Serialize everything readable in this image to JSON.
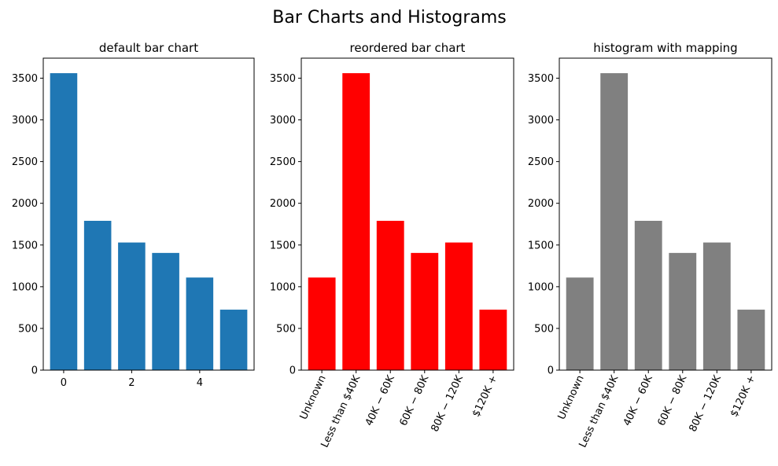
{
  "figure": {
    "title": "Bar Charts and Histograms"
  },
  "chart_data": [
    {
      "type": "bar",
      "title": "default bar chart",
      "xlabel": "",
      "ylabel": "",
      "x": [
        0,
        1,
        2,
        3,
        4,
        5
      ],
      "values": [
        3560,
        1790,
        1530,
        1405,
        1110,
        725
      ],
      "color": "#1f77b4",
      "x_numeric": true,
      "xlim": [
        -0.6,
        5.6
      ],
      "xticks": [
        0,
        2,
        4
      ],
      "ylim": [
        0,
        3740
      ],
      "yticks": [
        0,
        500,
        1000,
        1500,
        2000,
        2500,
        3000,
        3500
      ],
      "grid": false
    },
    {
      "type": "bar",
      "title": "reordered bar chart",
      "xlabel": "",
      "ylabel": "",
      "categories": [
        "Unknown",
        "Less than $40K",
        "40K − 60K",
        "60K − 80K",
        "80K − 120K",
        "$120K +"
      ],
      "values": [
        1110,
        3560,
        1790,
        1405,
        1530,
        725
      ],
      "color": "#ff0000",
      "x_numeric": false,
      "ylim": [
        0,
        3740
      ],
      "yticks": [
        0,
        500,
        1000,
        1500,
        2000,
        2500,
        3000,
        3500
      ],
      "tick_rotation": 65,
      "grid": false
    },
    {
      "type": "bar",
      "title": "histogram with mapping",
      "xlabel": "",
      "ylabel": "",
      "categories": [
        "Unknown",
        "Less than $40K",
        "40K − 60K",
        "60K − 80K",
        "80K − 120K",
        "$120K +"
      ],
      "values": [
        1110,
        3560,
        1790,
        1405,
        1530,
        725
      ],
      "color": "#808080",
      "x_numeric": false,
      "ylim": [
        0,
        3740
      ],
      "yticks": [
        0,
        500,
        1000,
        1500,
        2000,
        2500,
        3000,
        3500
      ],
      "tick_rotation": 65,
      "grid": false
    }
  ]
}
